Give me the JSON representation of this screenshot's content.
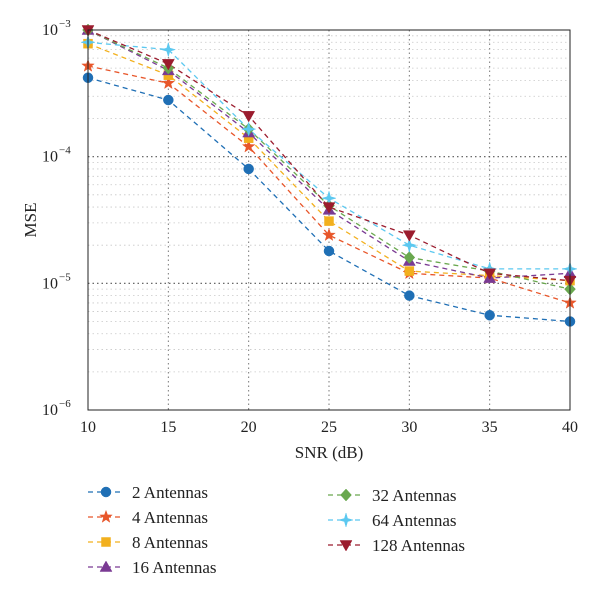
{
  "chart_data": {
    "type": "line",
    "xlabel": "SNR (dB)",
    "ylabel": "MSE",
    "x": [
      10,
      15,
      20,
      25,
      30,
      35,
      40
    ],
    "xlim": [
      10,
      40
    ],
    "ylim": [
      1e-06,
      0.001
    ],
    "yscale": "log",
    "grid": true,
    "x_ticks": [
      "10",
      "15",
      "20",
      "25",
      "30",
      "35",
      "40"
    ],
    "y_ticks": [
      {
        "value": 0.001,
        "base": "10",
        "exp": "−3"
      },
      {
        "value": 0.0001,
        "base": "10",
        "exp": "−4"
      },
      {
        "value": 1e-05,
        "base": "10",
        "exp": "−5"
      },
      {
        "value": 1e-06,
        "base": "10",
        "exp": "−6"
      }
    ],
    "legend_position": "bottom",
    "series": [
      {
        "name": "2 Antennas",
        "color": "#1f6fb5",
        "marker": "circle",
        "values": [
          0.00042,
          0.00028,
          8e-05,
          1.8e-05,
          8e-06,
          5.6e-06,
          5e-06
        ]
      },
      {
        "name": "4 Antennas",
        "color": "#e8562a",
        "marker": "star",
        "values": [
          0.00052,
          0.00038,
          0.00012,
          2.4e-05,
          1.2e-05,
          1.1e-05,
          7e-06
        ]
      },
      {
        "name": "8 Antennas",
        "color": "#f2b01e",
        "marker": "square",
        "values": [
          0.00078,
          0.00044,
          0.00014,
          3.1e-05,
          1.25e-05,
          1.15e-05,
          1.05e-05
        ]
      },
      {
        "name": "16 Antennas",
        "color": "#7a3a93",
        "marker": "triangle-up",
        "values": [
          0.001,
          0.00048,
          0.000155,
          3.8e-05,
          1.5e-05,
          1.1e-05,
          1.2e-05
        ]
      },
      {
        "name": "32 Antennas",
        "color": "#6aa84f",
        "marker": "diamond",
        "values": [
          0.001,
          0.0005,
          0.000165,
          4.1e-05,
          1.6e-05,
          1.25e-05,
          9e-06
        ]
      },
      {
        "name": "64 Antennas",
        "color": "#5bc8f0",
        "marker": "star4",
        "values": [
          0.0008,
          0.0007,
          0.000165,
          4.7e-05,
          2e-05,
          1.3e-05,
          1.3e-05
        ]
      },
      {
        "name": "128 Antennas",
        "color": "#9b1c2e",
        "marker": "triangle-down",
        "values": [
          0.001,
          0.00054,
          0.00021,
          4e-05,
          2.4e-05,
          1.2e-05,
          1.05e-05
        ]
      }
    ]
  }
}
